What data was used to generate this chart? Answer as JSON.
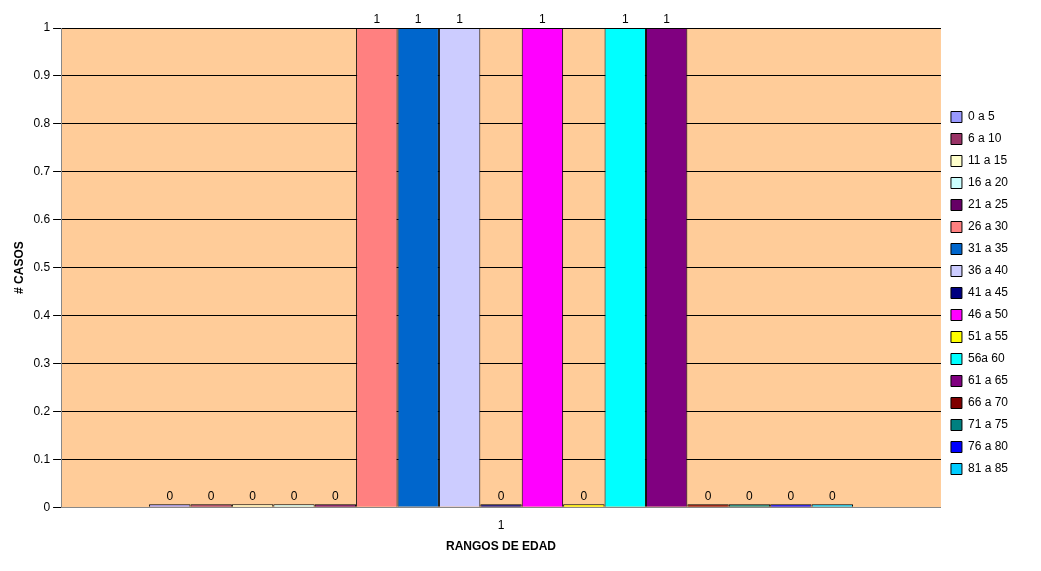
{
  "chart_data": {
    "type": "bar",
    "xlabel": "RANGOS DE EDAD",
    "ylabel": "# CASOS",
    "categories": [
      "1"
    ],
    "series": [
      {
        "name": "0 a 5",
        "color": "#9999ff",
        "values": [
          0
        ]
      },
      {
        "name": "6 a 10",
        "color": "#993366",
        "values": [
          0
        ]
      },
      {
        "name": "11 a 15",
        "color": "#ffffcc",
        "values": [
          0
        ]
      },
      {
        "name": "16 a 20",
        "color": "#ccffff",
        "values": [
          0
        ]
      },
      {
        "name": "21 a 25",
        "color": "#660066",
        "values": [
          0
        ]
      },
      {
        "name": "26 a 30",
        "color": "#ff8080",
        "values": [
          1
        ]
      },
      {
        "name": "31 a 35",
        "color": "#0066cc",
        "values": [
          1
        ]
      },
      {
        "name": "36 a 40",
        "color": "#ccccff",
        "values": [
          1
        ]
      },
      {
        "name": "41 a 45",
        "color": "#000080",
        "values": [
          0
        ]
      },
      {
        "name": "46 a 50",
        "color": "#ff00ff",
        "values": [
          1
        ]
      },
      {
        "name": "51 a 55",
        "color": "#ffff00",
        "values": [
          0
        ]
      },
      {
        "name": "56a 60",
        "color": "#00ffff",
        "values": [
          1
        ]
      },
      {
        "name": "61 a 65",
        "color": "#800080",
        "values": [
          1
        ]
      },
      {
        "name": "66 a 70",
        "color": "#800000",
        "values": [
          0
        ]
      },
      {
        "name": "71 a 75",
        "color": "#008080",
        "values": [
          0
        ]
      },
      {
        "name": "76 a 80",
        "color": "#0000ff",
        "values": [
          0
        ]
      },
      {
        "name": "81 a 85",
        "color": "#00ccff",
        "values": [
          0
        ]
      }
    ],
    "ylim": [
      0,
      1
    ],
    "yticks": [
      0,
      0.1,
      0.2,
      0.3,
      0.4,
      0.5,
      0.6,
      0.7,
      0.8,
      0.9,
      1
    ],
    "grid": "y",
    "legend": "right",
    "data_labels": true
  }
}
